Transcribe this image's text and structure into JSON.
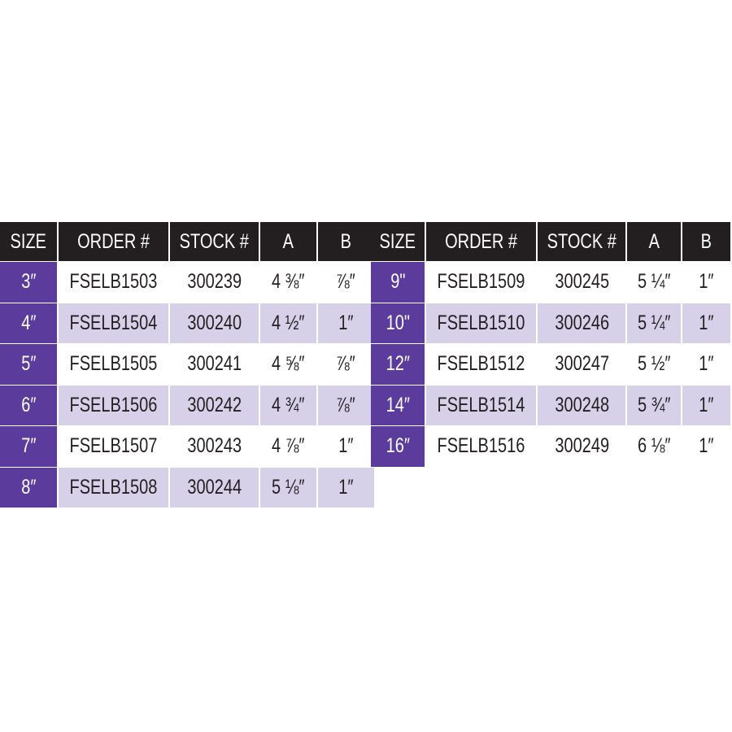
{
  "headers": [
    "SIZE",
    "ORDER #",
    "STOCK #",
    "A",
    "B"
  ],
  "tables": [
    {
      "rows": [
        {
          "size": "3″",
          "order": "FSELB1503",
          "stock": "300239",
          "a": "4 ⅜″",
          "b": "⅞″"
        },
        {
          "size": "4″",
          "order": "FSELB1504",
          "stock": "300240",
          "a": "4 ½″",
          "b": "1″"
        },
        {
          "size": "5″",
          "order": "FSELB1505",
          "stock": "300241",
          "a": "4 ⅝″",
          "b": "⅞″"
        },
        {
          "size": "6″",
          "order": "FSELB1506",
          "stock": "300242",
          "a": "4 ¾″",
          "b": "⅞″"
        },
        {
          "size": "7″",
          "order": "FSELB1507",
          "stock": "300243",
          "a": "4 ⅞″",
          "b": "1″"
        },
        {
          "size": "8″",
          "order": "FSELB1508",
          "stock": "300244",
          "a": "5 ⅛″",
          "b": "1″"
        }
      ]
    },
    {
      "rows": [
        {
          "size": "9\"",
          "order": "FSELB1509",
          "stock": "300245",
          "a": "5 ¼″",
          "b": "1″"
        },
        {
          "size": "10\"",
          "order": "FSELB1510",
          "stock": "300246",
          "a": "5 ¼″",
          "b": "1″"
        },
        {
          "size": "12″",
          "order": "FSELB1512",
          "stock": "300247",
          "a": "5 ½″",
          "b": "1″"
        },
        {
          "size": "14″",
          "order": "FSELB1514",
          "stock": "300248",
          "a": "5 ¾″",
          "b": "1″"
        },
        {
          "size": "16″",
          "order": "FSELB1516",
          "stock": "300249",
          "a": "6 ⅛″",
          "b": "1″"
        }
      ]
    }
  ],
  "colors": {
    "header": "#231f20",
    "size_column": "#5b3b9c",
    "alt_row": "#d6d0e8"
  }
}
